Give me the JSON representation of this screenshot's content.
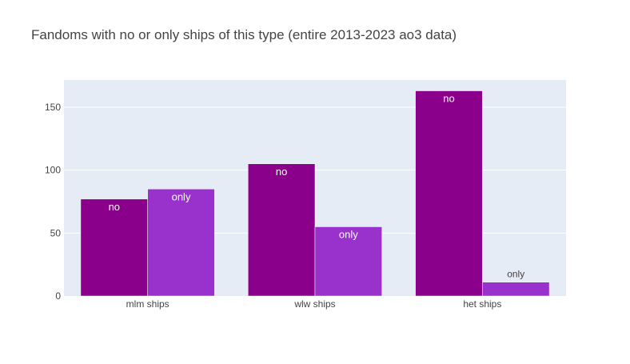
{
  "chart_data": {
    "type": "bar",
    "title": "Fandoms with no or only ships of this type (entire 2013-2023 ao3 data)",
    "categories": [
      "mlm ships",
      "wlw ships",
      "het ships"
    ],
    "series": [
      {
        "name": "no",
        "values": [
          77,
          105,
          163
        ],
        "labels": [
          "no",
          "no",
          "no"
        ],
        "color": "#8b008b"
      },
      {
        "name": "only",
        "values": [
          85,
          55,
          11
        ],
        "labels": [
          "only",
          "only",
          "only"
        ],
        "color": "#9932cc"
      }
    ],
    "yticks": [
      0,
      50,
      100,
      150
    ],
    "ytick_labels": [
      "0",
      "50",
      "100",
      "150"
    ],
    "ylim": [
      0,
      171.6
    ],
    "xlabel": "",
    "ylabel": "",
    "grid": true,
    "legend": "none",
    "plot_background": "#e5ecf6",
    "inside_label_color": "#ffffff",
    "outside_label_color": "#444444"
  }
}
